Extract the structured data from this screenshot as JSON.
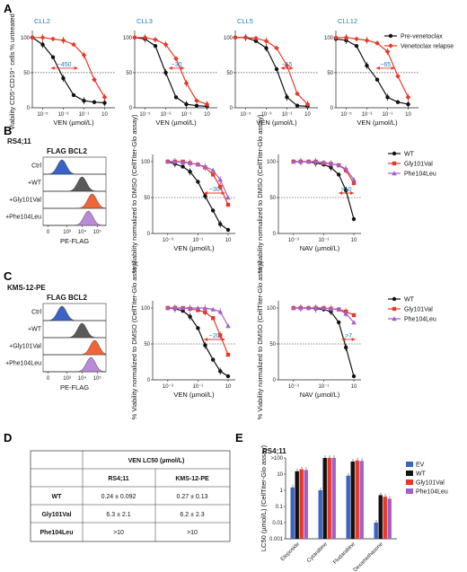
{
  "panels": {
    "A": "A",
    "B": "B",
    "C": "C",
    "D": "D",
    "E": "E"
  },
  "colors": {
    "black": "#111111",
    "red": "#e8382a",
    "purple": "#a45fc6",
    "blue": "#3b63c4",
    "gray": "#5a5a5a",
    "orange": "#f0643a",
    "lightpurple": "#b98ad6",
    "title_blue": "#1a7fbf"
  },
  "panelA": {
    "ylabel": "Viability CD5⁺CD19⁺ cells % untreated",
    "legend": [
      "Pre-venetoclax",
      "Venetoclax relapse"
    ],
    "xlabel": "VEN (µmol/L)",
    "subplots": [
      {
        "title": "CLL2",
        "fold": "~450"
      },
      {
        "title": "CLL3",
        "fold": "~30"
      },
      {
        "title": "CLL5",
        "fold": "~15"
      },
      {
        "title": "CLL12",
        "fold": "~65"
      }
    ],
    "xticks": [
      "10⁻⁵",
      "10⁻³",
      "10⁻¹",
      "10"
    ],
    "yticks": [
      "0",
      "50",
      "100"
    ]
  },
  "panelB": {
    "cell_line": "RS4;11",
    "flow_title": "FLAG BCL2",
    "flow_rows": [
      "Ctrl",
      "+WT",
      "+Gly101Val",
      "+Phe104Leu"
    ],
    "flow_xticks": [
      "0",
      "10³",
      "10⁴",
      "10⁵"
    ],
    "flow_xlabel": "PE-FLAG",
    "ylabel": "% Viability normalized to DMSO (CellTiter-Glo assay)",
    "legend": [
      "WT",
      "Gly101Val",
      "Phe104Leu"
    ],
    "plots": [
      {
        "xlabel": "VEN (µmol/L)",
        "fold": "~30"
      },
      {
        "xlabel": "NAV (µmol/L)",
        "fold": ">10"
      }
    ],
    "xticks": [
      "10⁻³",
      "10⁻¹",
      "10"
    ],
    "yticks": [
      "0",
      "50",
      "100"
    ]
  },
  "panelC": {
    "cell_line": "KMS-12-PE",
    "flow_title": "FLAG BCL2",
    "flow_rows": [
      "Ctrl",
      "+WT",
      "+Gly101Val",
      "+Phe104Leu"
    ],
    "flow_xticks": [
      "0",
      "10³",
      "10⁴",
      "10⁵"
    ],
    "flow_xlabel": "PE-FLAG",
    "ylabel": "% Viability normalized to DMSO (CellTiter-Glo assay)",
    "legend": [
      "WT",
      "Gly101Val",
      "Phe104Leu"
    ],
    "plots": [
      {
        "xlabel": "VEN (µmol/L)",
        "fold": "~20"
      },
      {
        "xlabel": "NAV (µmol/L)",
        "fold": ">7"
      }
    ],
    "xticks": [
      "10⁻³",
      "10⁻¹",
      "10"
    ],
    "yticks": [
      "0",
      "50",
      "100"
    ]
  },
  "panelD": {
    "header": "VEN LC50 (µmol/L)",
    "columns": [
      "RS4;11",
      "KMS-12-PE"
    ],
    "rows": [
      {
        "label": "WT",
        "values": [
          "0.24 ± 0.092",
          "0.27 ± 0.13"
        ]
      },
      {
        "label": "Gly101Val",
        "values": [
          "6.3 ± 2.1",
          "6.2 ± 2.3"
        ]
      },
      {
        "label": "Phe104Leu",
        "values": [
          ">10",
          ">10"
        ]
      }
    ]
  },
  "panelE": {
    "cell_line": "RS4;11",
    "ylabel": "LC50 (µmol/L) (CellTiter-Glo assay)",
    "legend": [
      "EV",
      "WT",
      "Gly101Val",
      "Phe104Leu"
    ],
    "yticks": [
      "0.001",
      "0.01",
      "0.1",
      "1",
      "10",
      ">100"
    ]
  },
  "chart_data": [
    {
      "type": "line",
      "title": "CLL2",
      "xlabel": "VEN (µmol/L)",
      "ylabel": "Viability CD5⁺CD19⁺ cells % untreated",
      "x_scale": "log",
      "xlim": [
        1e-06,
        100
      ],
      "ylim": [
        0,
        110
      ],
      "series": [
        {
          "name": "Pre-venetoclax",
          "x": [
            1e-06,
            1e-05,
            0.0001,
            0.001,
            0.01,
            0.1,
            1,
            10
          ],
          "y": [
            100,
            90,
            72,
            42,
            18,
            10,
            8,
            7
          ]
        },
        {
          "name": "Venetoclax relapse",
          "x": [
            1e-06,
            1e-05,
            0.0001,
            0.001,
            0.01,
            0.1,
            1,
            10
          ],
          "y": [
            100,
            100,
            98,
            96,
            90,
            75,
            40,
            15
          ]
        }
      ]
    },
    {
      "type": "line",
      "title": "CLL3",
      "xlabel": "VEN (µmol/L)",
      "x_scale": "log",
      "xlim": [
        1e-06,
        100
      ],
      "ylim": [
        0,
        110
      ],
      "series": [
        {
          "name": "Pre-venetoclax",
          "x": [
            1e-06,
            1e-05,
            0.0001,
            0.001,
            0.01,
            0.1,
            1,
            10
          ],
          "y": [
            100,
            98,
            88,
            50,
            15,
            5,
            3,
            2
          ]
        },
        {
          "name": "Venetoclax relapse",
          "x": [
            1e-06,
            1e-05,
            0.0001,
            0.001,
            0.01,
            0.1,
            1,
            10
          ],
          "y": [
            100,
            100,
            97,
            90,
            70,
            35,
            10,
            5
          ]
        }
      ]
    },
    {
      "type": "line",
      "title": "CLL5",
      "xlabel": "VEN (µmol/L)",
      "x_scale": "log",
      "xlim": [
        1e-06,
        100
      ],
      "ylim": [
        0,
        110
      ],
      "series": [
        {
          "name": "Pre-venetoclax",
          "x": [
            1e-06,
            1e-05,
            0.0001,
            0.001,
            0.01,
            0.1,
            1,
            10
          ],
          "y": [
            100,
            100,
            95,
            85,
            55,
            15,
            3,
            2
          ]
        },
        {
          "name": "Venetoclax relapse",
          "x": [
            1e-06,
            1e-05,
            0.0001,
            0.001,
            0.01,
            0.1,
            1,
            10
          ],
          "y": [
            100,
            100,
            99,
            95,
            85,
            60,
            20,
            5
          ]
        }
      ]
    },
    {
      "type": "line",
      "title": "CLL12",
      "xlabel": "VEN (µmol/L)",
      "x_scale": "log",
      "xlim": [
        1e-06,
        100
      ],
      "ylim": [
        0,
        110
      ],
      "series": [
        {
          "name": "Pre-venetoclax",
          "x": [
            1e-06,
            1e-05,
            0.0001,
            0.001,
            0.01,
            0.1,
            1,
            10
          ],
          "y": [
            98,
            96,
            88,
            60,
            40,
            15,
            8,
            5
          ]
        },
        {
          "name": "Venetoclax relapse",
          "x": [
            1e-06,
            1e-05,
            0.0001,
            0.001,
            0.01,
            0.1,
            1,
            10
          ],
          "y": [
            100,
            100,
            98,
            96,
            92,
            80,
            45,
            15
          ]
        }
      ]
    },
    {
      "type": "line",
      "title": "",
      "xlabel": "VEN (µmol/L)",
      "x_scale": "log",
      "xlim": [
        0.0001,
        30
      ],
      "ylim": [
        0,
        110
      ],
      "series": [
        {
          "name": "WT",
          "x": [
            0.001,
            0.003,
            0.01,
            0.03,
            0.1,
            0.3,
            1,
            3,
            10
          ],
          "y": [
            100,
            97,
            93,
            86,
            72,
            52,
            32,
            13,
            5
          ]
        },
        {
          "name": "Gly101Val",
          "x": [
            0.001,
            0.003,
            0.01,
            0.03,
            0.1,
            0.3,
            1,
            3,
            10
          ],
          "y": [
            100,
            100,
            100,
            98,
            96,
            92,
            82,
            65,
            40
          ]
        },
        {
          "name": "Phe104Leu",
          "x": [
            0.001,
            0.003,
            0.01,
            0.03,
            0.1,
            0.3,
            1,
            3,
            10
          ],
          "y": [
            100,
            100,
            99,
            98,
            96,
            93,
            88,
            75,
            50
          ]
        }
      ]
    },
    {
      "type": "line",
      "title": "",
      "xlabel": "NAV (µmol/L)",
      "x_scale": "log",
      "xlim": [
        0.0001,
        30
      ],
      "ylim": [
        0,
        110
      ],
      "series": [
        {
          "name": "WT",
          "x": [
            0.001,
            0.003,
            0.01,
            0.03,
            0.1,
            0.3,
            1,
            3,
            10
          ],
          "y": [
            100,
            100,
            100,
            98,
            96,
            92,
            82,
            60,
            20
          ]
        },
        {
          "name": "Gly101Val",
          "x": [
            0.001,
            0.003,
            0.01,
            0.03,
            0.1,
            0.3,
            1,
            3,
            10
          ],
          "y": [
            100,
            100,
            100,
            100,
            98,
            97,
            95,
            88,
            70
          ]
        },
        {
          "name": "Phe104Leu",
          "x": [
            0.001,
            0.003,
            0.01,
            0.03,
            0.1,
            0.3,
            1,
            3,
            10
          ],
          "y": [
            100,
            100,
            100,
            100,
            99,
            97,
            95,
            90,
            75
          ]
        }
      ]
    },
    {
      "type": "line",
      "title": "",
      "xlabel": "VEN (µmol/L)",
      "x_scale": "log",
      "xlim": [
        0.0001,
        30
      ],
      "ylim": [
        0,
        110
      ],
      "series": [
        {
          "name": "WT",
          "x": [
            0.001,
            0.003,
            0.01,
            0.03,
            0.1,
            0.3,
            1,
            3,
            10
          ],
          "y": [
            100,
            99,
            96,
            88,
            72,
            48,
            28,
            12,
            5
          ]
        },
        {
          "name": "Gly101Val",
          "x": [
            0.001,
            0.003,
            0.01,
            0.03,
            0.1,
            0.3,
            1,
            3,
            10
          ],
          "y": [
            100,
            100,
            100,
            99,
            97,
            94,
            86,
            62,
            35
          ]
        },
        {
          "name": "Phe104Leu",
          "x": [
            0.001,
            0.003,
            0.01,
            0.03,
            0.1,
            0.3,
            1,
            3,
            10
          ],
          "y": [
            100,
            100,
            100,
            100,
            100,
            100,
            98,
            95,
            75
          ]
        }
      ]
    },
    {
      "type": "line",
      "title": "",
      "xlabel": "NAV (µmol/L)",
      "x_scale": "log",
      "xlim": [
        0.0001,
        30
      ],
      "ylim": [
        0,
        110
      ],
      "series": [
        {
          "name": "WT",
          "x": [
            0.001,
            0.003,
            0.01,
            0.03,
            0.1,
            0.3,
            1,
            3,
            10
          ],
          "y": [
            100,
            100,
            100,
            99,
            98,
            95,
            80,
            45,
            5
          ]
        },
        {
          "name": "Gly101Val",
          "x": [
            0.001,
            0.003,
            0.01,
            0.03,
            0.1,
            0.3,
            1,
            3,
            10
          ],
          "y": [
            100,
            100,
            100,
            100,
            100,
            99,
            98,
            95,
            90
          ]
        },
        {
          "name": "Phe104Leu",
          "x": [
            0.001,
            0.003,
            0.01,
            0.03,
            0.1,
            0.3,
            1,
            3,
            10
          ],
          "y": [
            100,
            100,
            100,
            100,
            100,
            99,
            98,
            92,
            80
          ]
        }
      ]
    },
    {
      "type": "bar",
      "title": "RS4;11",
      "ylabel": "LC50 (µmol/L) (CellTiter-Glo assay)",
      "y_scale": "log",
      "ylim": [
        0.001,
        100
      ],
      "categories": [
        "Etoposide",
        "Cytarabine",
        "Fludarabine",
        "Dexamethasone"
      ],
      "series": [
        {
          "name": "EV",
          "values": [
            1.5,
            1.0,
            8.0,
            0.01
          ]
        },
        {
          "name": "WT",
          "values": [
            15,
            100,
            60,
            0.5
          ]
        },
        {
          "name": "Gly101Val",
          "values": [
            20,
            100,
            70,
            0.4
          ]
        },
        {
          "name": "Phe104Leu",
          "values": [
            18,
            100,
            65,
            0.3
          ]
        }
      ]
    }
  ]
}
